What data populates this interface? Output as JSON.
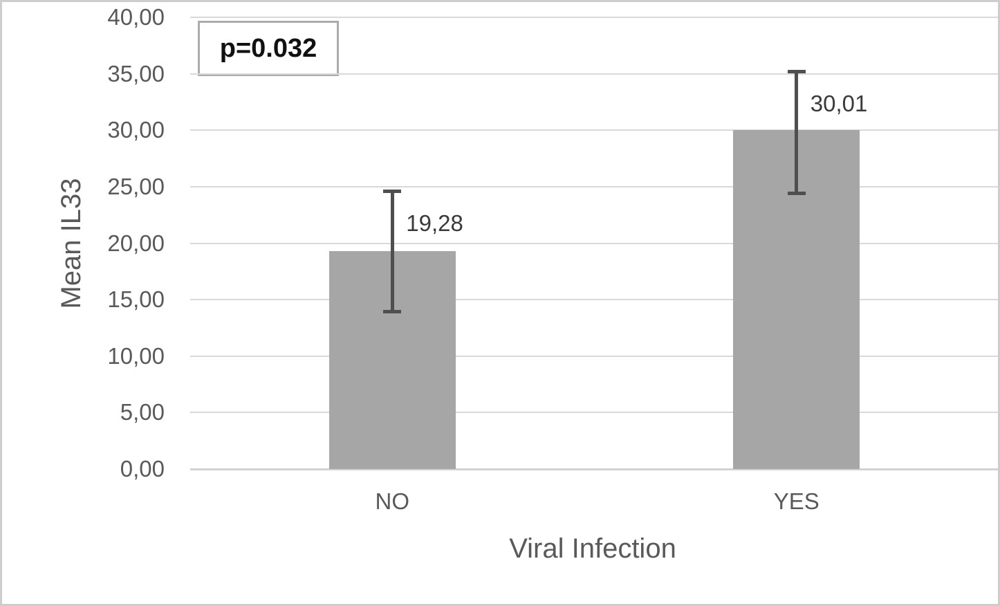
{
  "chart_data": {
    "type": "bar",
    "title": "",
    "xlabel": "Viral Infection",
    "ylabel": "Mean IL33",
    "categories": [
      "NO",
      "YES"
    ],
    "values": [
      19.28,
      30.01
    ],
    "value_labels": [
      "19,28",
      "30,01"
    ],
    "errors": [
      {
        "low": 13.9,
        "high": 24.6
      },
      {
        "low": 24.4,
        "high": 35.2
      }
    ],
    "ylim": [
      0,
      40
    ],
    "ytick_step": 5,
    "ytick_labels": [
      "0,00",
      "5,00",
      "10,00",
      "15,00",
      "20,00",
      "25,00",
      "30,00",
      "35,00",
      "40,00"
    ],
    "grid": true,
    "legend": "none",
    "annotation": "p=0.032",
    "colors": {
      "bar_fill": "#a6a6a6",
      "error_bar": "#4f4f4f",
      "grid_line": "#d9d9d9",
      "axis_text": "#595959",
      "data_label_text": "#3a3a3a",
      "annotation_text": "#111111",
      "annotation_border": "#ababab",
      "figure_border": "#cdcdcd",
      "background": "#ffffff"
    }
  }
}
